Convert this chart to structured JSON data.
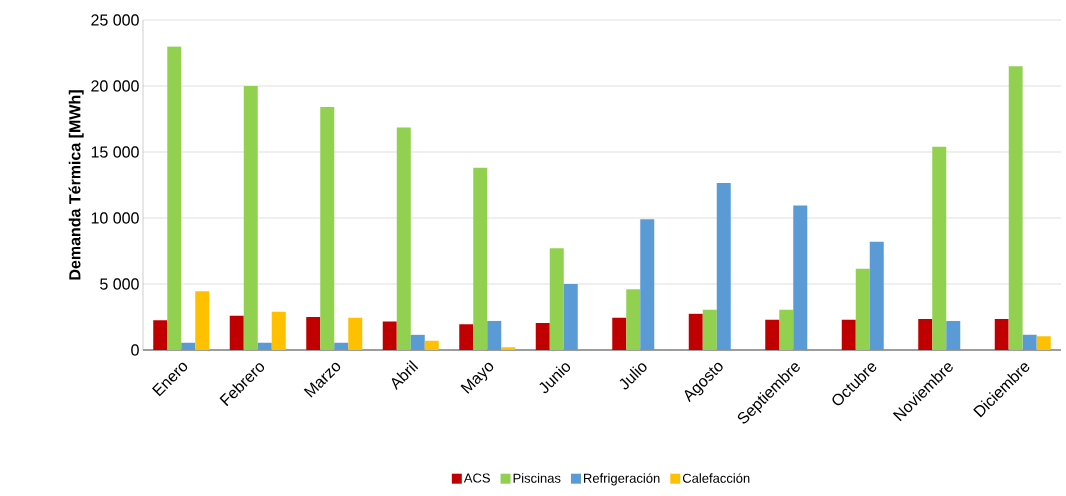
{
  "chart_data": {
    "type": "bar",
    "ylabel": "Demanda Térmica [MWh]",
    "categories": [
      "Enero",
      "Febrero",
      "Marzo",
      "Abril",
      "Mayo",
      "Junio",
      "Julio",
      "Agosto",
      "Septiembre",
      "Octubre",
      "Noviembre",
      "Diciembre"
    ],
    "series": [
      {
        "name": "ACS",
        "color": "#c00000",
        "values": [
          2250,
          2600,
          2500,
          2150,
          1950,
          2050,
          2450,
          2750,
          2300,
          2300,
          2350,
          2350
        ]
      },
      {
        "name": "Piscinas",
        "color": "#92d050",
        "values": [
          23000,
          20000,
          18400,
          16850,
          13800,
          7700,
          4600,
          3050,
          3050,
          6150,
          15400,
          21500
        ]
      },
      {
        "name": "Refrigeración",
        "color": "#5b9bd5",
        "values": [
          550,
          550,
          550,
          1150,
          2200,
          5000,
          9900,
          12650,
          10950,
          8200,
          2200,
          1150
        ]
      },
      {
        "name": "Calefacción",
        "color": "#ffc000",
        "values": [
          4450,
          2900,
          2450,
          700,
          200,
          null,
          null,
          null,
          null,
          null,
          null,
          1050
        ]
      }
    ],
    "ylim": [
      0,
      25000
    ],
    "yticks": [
      {
        "value": 0,
        "label": "0"
      },
      {
        "value": 5000,
        "label": "5 000"
      },
      {
        "value": 10000,
        "label": "10 000"
      },
      {
        "value": 15000,
        "label": "15 000"
      },
      {
        "value": 20000,
        "label": "20 000"
      },
      {
        "value": 25000,
        "label": "25 000"
      }
    ],
    "grid": "y",
    "legend": "bottom"
  }
}
